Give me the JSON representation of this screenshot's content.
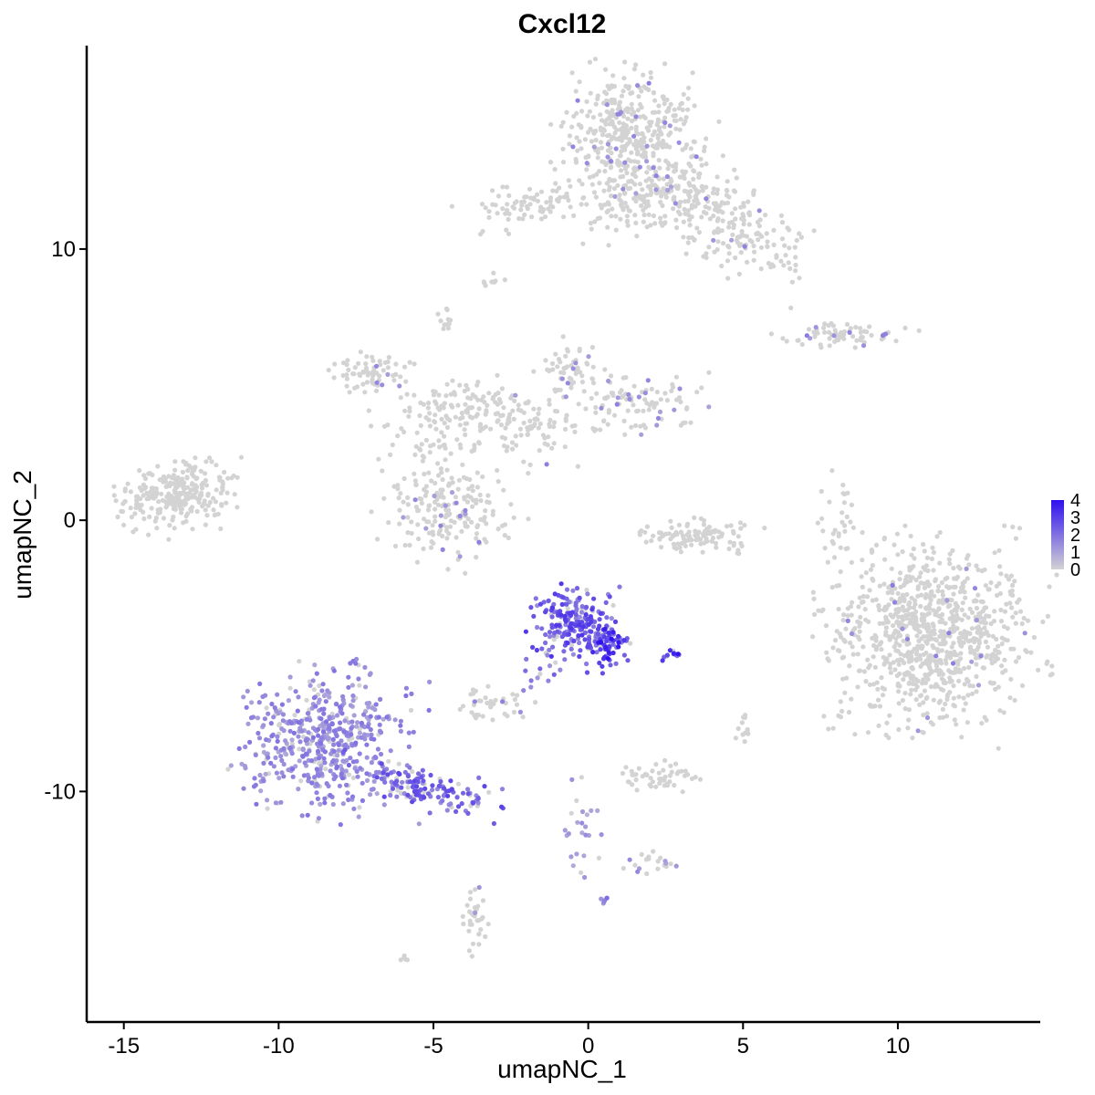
{
  "chart_data": {
    "type": "scatter",
    "title": "Cxcl12",
    "xlabel": "umapNC_1",
    "ylabel": "umapNC_2",
    "xlim": [
      -16.2,
      14.6
    ],
    "ylim": [
      -18.5,
      17.5
    ],
    "x_ticks": [
      -15,
      -10,
      -5,
      0,
      5,
      10
    ],
    "x_tick_labels": [
      "-15",
      "-10",
      "-5",
      "0",
      "5",
      "10"
    ],
    "y_ticks": [
      -10,
      0,
      10
    ],
    "y_tick_labels": [
      "-10",
      "0",
      "10"
    ],
    "grid": false,
    "legend": {
      "placement": "right",
      "type": "colorbar",
      "min": 0,
      "max": 4,
      "labels": [
        "4",
        "3",
        "2",
        "1",
        "0"
      ],
      "color_low": "#d3d3d3",
      "color_high": "#2f10ef"
    },
    "clusters": [
      {
        "cx": 1.5,
        "cy": 14.2,
        "sx": 1.1,
        "sy": 1.1,
        "n": 420,
        "expr": 0.02,
        "rot": 0
      },
      {
        "cx": 4.3,
        "cy": 11.1,
        "sx": 1.5,
        "sy": 0.7,
        "n": 220,
        "expr": 0.01,
        "rot": -0.6
      },
      {
        "cx": 2.0,
        "cy": 11.9,
        "sx": 1.3,
        "sy": 0.6,
        "n": 130,
        "expr": 0.01,
        "rot": 0.3
      },
      {
        "cx": -2.0,
        "cy": 11.6,
        "sx": 1.0,
        "sy": 0.4,
        "n": 80,
        "expr": 0.0,
        "rot": 0.2
      },
      {
        "cx": 11.0,
        "cy": -4.3,
        "sx": 1.6,
        "sy": 1.6,
        "n": 900,
        "expr": 0.01,
        "rot": 0
      },
      {
        "cx": -13.3,
        "cy": 0.9,
        "sx": 0.9,
        "sy": 0.6,
        "n": 280,
        "expr": 0.0,
        "rot": 0.2
      },
      {
        "cx": -4.5,
        "cy": 0.5,
        "sx": 1.0,
        "sy": 1.0,
        "n": 200,
        "expr": 0.02,
        "rot": 0
      },
      {
        "cx": -4.8,
        "cy": 3.6,
        "sx": 1.0,
        "sy": 0.7,
        "n": 120,
        "expr": 0.0,
        "rot": 0.5
      },
      {
        "cx": -7.1,
        "cy": 5.4,
        "sx": 0.7,
        "sy": 0.4,
        "n": 70,
        "expr": 0.02,
        "rot": 0
      },
      {
        "cx": -2.3,
        "cy": 3.7,
        "sx": 1.0,
        "sy": 0.5,
        "n": 100,
        "expr": 0.01,
        "rot": -0.5
      },
      {
        "cx": 1.5,
        "cy": 4.3,
        "sx": 1.2,
        "sy": 0.5,
        "n": 110,
        "expr": 0.04,
        "rot": 0
      },
      {
        "cx": -0.5,
        "cy": 5.5,
        "sx": 0.6,
        "sy": 0.5,
        "n": 60,
        "expr": 0.02,
        "rot": 0
      },
      {
        "cx": 3.5,
        "cy": -0.6,
        "sx": 1.0,
        "sy": 0.3,
        "n": 110,
        "expr": 0.0,
        "rot": 0
      },
      {
        "cx": 8.2,
        "cy": 6.8,
        "sx": 1.0,
        "sy": 0.2,
        "n": 70,
        "expr": 0.04,
        "rot": 0
      },
      {
        "cx": 8.0,
        "cy": 0.3,
        "sx": 0.25,
        "sy": 0.8,
        "n": 30,
        "expr": 0.0,
        "rot": 0
      },
      {
        "cx": -0.5,
        "cy": -3.8,
        "sx": 0.6,
        "sy": 0.6,
        "n": 200,
        "expr": 0.65,
        "rot": 0
      },
      {
        "cx": 0.6,
        "cy": -4.6,
        "sx": 0.5,
        "sy": 0.4,
        "n": 80,
        "expr": 0.85,
        "rot": 0
      },
      {
        "cx": -8.5,
        "cy": -8.2,
        "sx": 1.3,
        "sy": 1.2,
        "n": 520,
        "expr": 0.4,
        "rot": 0
      },
      {
        "cx": -5.3,
        "cy": -9.8,
        "sx": 1.2,
        "sy": 0.35,
        "n": 140,
        "expr": 0.6,
        "rot": -0.35
      },
      {
        "cx": -3.2,
        "cy": -6.8,
        "sx": 0.6,
        "sy": 0.3,
        "n": 40,
        "expr": 0.03,
        "rot": 0
      },
      {
        "cx": 2.3,
        "cy": -9.5,
        "sx": 0.6,
        "sy": 0.3,
        "n": 50,
        "expr": 0.0,
        "rot": 0
      },
      {
        "cx": -3.7,
        "cy": -14.6,
        "sx": 0.2,
        "sy": 0.6,
        "n": 35,
        "expr": 0.02,
        "rot": 0
      },
      {
        "cx": 2.1,
        "cy": -12.6,
        "sx": 0.5,
        "sy": 0.2,
        "n": 20,
        "expr": 0.1,
        "rot": 0
      },
      {
        "cx": -0.3,
        "cy": -11.5,
        "sx": 0.3,
        "sy": 1.0,
        "n": 25,
        "expr": 0.3,
        "rot": 0
      },
      {
        "cx": -1.5,
        "cy": -5.6,
        "sx": 0.4,
        "sy": 0.5,
        "n": 15,
        "expr": 0.5,
        "rot": 0
      },
      {
        "cx": 2.8,
        "cy": -5.0,
        "sx": 0.2,
        "sy": 0.1,
        "n": 12,
        "expr": 0.9,
        "rot": 0
      },
      {
        "cx": 5.0,
        "cy": -7.5,
        "sx": 0.15,
        "sy": 0.3,
        "n": 12,
        "expr": 0.0,
        "rot": 0
      },
      {
        "cx": 0.6,
        "cy": -14.0,
        "sx": 0.1,
        "sy": 0.1,
        "n": 6,
        "expr": 0.5,
        "rot": 0
      },
      {
        "cx": -3.0,
        "cy": 8.9,
        "sx": 0.2,
        "sy": 0.15,
        "n": 10,
        "expr": 0.0,
        "rot": 0
      },
      {
        "cx": -4.6,
        "cy": 7.4,
        "sx": 0.2,
        "sy": 0.25,
        "n": 12,
        "expr": 0.0,
        "rot": 0
      },
      {
        "cx": -6.0,
        "cy": -16.1,
        "sx": 0.1,
        "sy": 0.1,
        "n": 5,
        "expr": 0.0,
        "rot": 0
      }
    ]
  }
}
